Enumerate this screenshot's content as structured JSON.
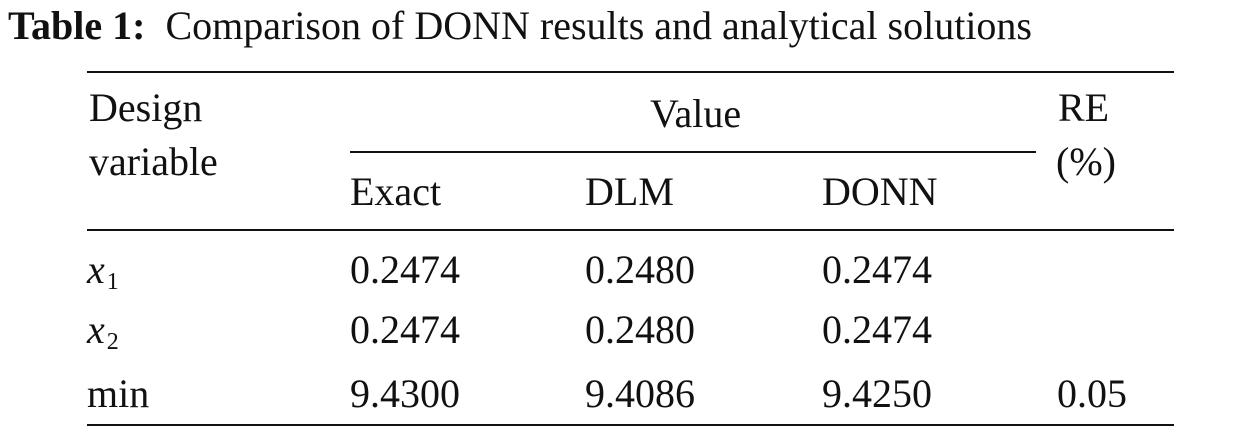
{
  "caption": {
    "label": "Table 1:",
    "text": "Comparison of DONN results and analytical solutions"
  },
  "table": {
    "header": {
      "design_line1": "Design",
      "design_line2": "variable",
      "value_group": "Value",
      "re_line1": "RE",
      "re_line2": "(%)",
      "sub_columns": [
        "Exact",
        "DLM",
        "DONN"
      ]
    },
    "rows": [
      {
        "var_base": "x",
        "var_sub": "1",
        "exact": "0.2474",
        "dlm": "0.2480",
        "donn": "0.2474",
        "re": ""
      },
      {
        "var_base": "x",
        "var_sub": "2",
        "exact": "0.2474",
        "dlm": "0.2480",
        "donn": "0.2474",
        "re": ""
      },
      {
        "var_label": "min",
        "exact": "9.4300",
        "dlm": "9.4086",
        "donn": "9.4250",
        "re": "0.05"
      }
    ]
  }
}
